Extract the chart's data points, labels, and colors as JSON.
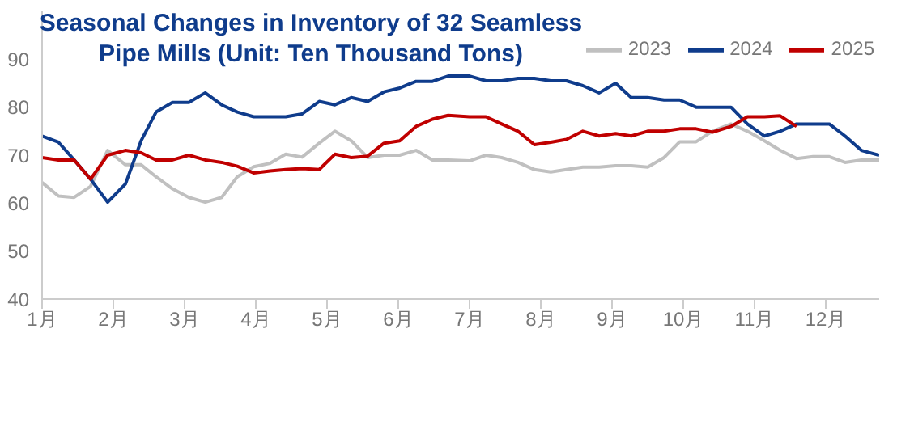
{
  "chart_data": {
    "type": "line",
    "title": "Seasonal Changes in Inventory of 32 Seamless Pipe Mills (Unit: Ten Thousand Tons)",
    "x": [
      1.0,
      1.23,
      1.45,
      1.68,
      1.92,
      2.17,
      2.39,
      2.6,
      2.83,
      3.06,
      3.29,
      3.52,
      3.74,
      3.97,
      4.2,
      4.42,
      4.65,
      4.89,
      5.11,
      5.34,
      5.57,
      5.8,
      6.02,
      6.25,
      6.48,
      6.7,
      7.0,
      7.23,
      7.45,
      7.68,
      7.91,
      8.14,
      8.36,
      8.59,
      8.82,
      9.05,
      9.27,
      9.5,
      9.73,
      9.95,
      10.18,
      10.41,
      10.67,
      10.9,
      11.14,
      11.36,
      11.59,
      11.82,
      12.05,
      12.27,
      12.5,
      12.75
    ],
    "series": [
      {
        "name": "2023",
        "color": "#c0c0c0",
        "values": [
          64.3,
          61.5,
          61.2,
          63.5,
          71,
          68,
          68,
          65.5,
          63,
          61.2,
          60.2,
          61.2,
          65.5,
          67.6,
          68.3,
          70.2,
          69.6,
          72.5,
          75,
          73,
          69.5,
          70,
          70,
          71,
          69,
          69,
          68.8,
          70,
          69.5,
          68.5,
          67,
          66.5,
          67,
          67.5,
          67.5,
          67.8,
          67.8,
          67.5,
          69.5,
          72.8,
          72.8,
          75,
          76.5,
          75,
          73,
          71,
          69.3,
          69.7,
          69.7,
          68.5,
          69,
          69
        ]
      },
      {
        "name": "2024",
        "color": "#0f3c8c",
        "values": [
          74,
          72.7,
          69,
          65,
          60.2,
          64,
          73,
          79,
          81,
          81,
          83,
          80.5,
          79,
          78,
          78,
          78,
          78.6,
          81.2,
          80.5,
          82,
          81.2,
          83.2,
          84,
          85.4,
          85.4,
          86.5,
          86.5,
          85.5,
          85.5,
          86,
          86,
          85.5,
          85.5,
          84.5,
          83,
          85,
          82,
          82,
          81.5,
          81.5,
          80,
          80,
          80,
          76.5,
          74,
          75,
          76.5,
          76.5,
          76.5,
          74,
          71,
          70
        ]
      },
      {
        "name": "2025",
        "color": "#c00000",
        "values": [
          69.5,
          69,
          69,
          65,
          70,
          71,
          70.5,
          69,
          69,
          70,
          69,
          68.5,
          67.7,
          66.3,
          66.7,
          67,
          67.2,
          67,
          70.2,
          69.5,
          69.8,
          72.5,
          73,
          76,
          77.5,
          78.3,
          78,
          78,
          76.5,
          75,
          72.2,
          72.7,
          73.3,
          75,
          74,
          74.5,
          74,
          75,
          75,
          75.5,
          75.5,
          74.8,
          76,
          78,
          78,
          78.2,
          76,
          null,
          null,
          null,
          null,
          null
        ]
      }
    ],
    "xlim": [
      1,
      12.75
    ],
    "xticks": [
      {
        "value": 1,
        "label": "1月"
      },
      {
        "value": 2,
        "label": "2月"
      },
      {
        "value": 3,
        "label": "3月"
      },
      {
        "value": 4,
        "label": "4月"
      },
      {
        "value": 5,
        "label": "5月"
      },
      {
        "value": 6,
        "label": "6月"
      },
      {
        "value": 7,
        "label": "7月"
      },
      {
        "value": 8,
        "label": "8月"
      },
      {
        "value": 9,
        "label": "9月"
      },
      {
        "value": 10,
        "label": "10月"
      },
      {
        "value": 11,
        "label": "11月"
      },
      {
        "value": 12,
        "label": "12月"
      }
    ],
    "ylim": [
      40,
      100
    ],
    "yticks": [
      40,
      50,
      60,
      70,
      80,
      90
    ],
    "legend": "top right",
    "marker": "none",
    "line_style": "solid"
  }
}
